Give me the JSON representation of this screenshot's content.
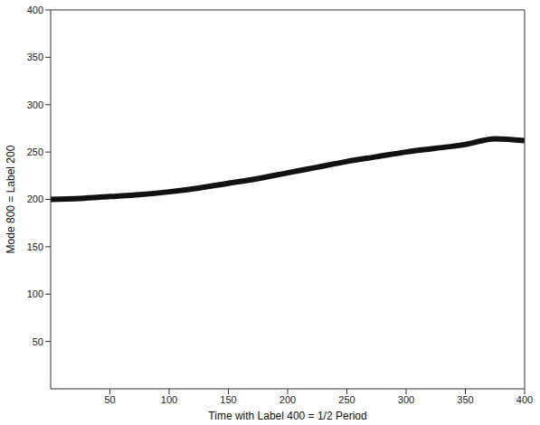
{
  "chart_data": {
    "type": "line",
    "xlabel": "Time with Label 400 = 1/2 Period",
    "ylabel": "Mode 800 = Label 200",
    "x": [
      0,
      25,
      50,
      75,
      100,
      125,
      150,
      175,
      200,
      225,
      250,
      275,
      300,
      325,
      350,
      375,
      400
    ],
    "values": [
      200,
      201,
      203,
      205,
      208,
      212,
      217,
      222,
      228,
      234,
      240,
      245,
      250,
      254,
      258,
      264,
      262
    ],
    "color": "#111111",
    "xlim": [
      0,
      400
    ],
    "ylim": [
      0,
      400
    ],
    "xticks": [
      50,
      100,
      150,
      200,
      250,
      300,
      350,
      400
    ],
    "yticks": [
      50,
      100,
      150,
      200,
      250,
      300,
      350,
      400
    ],
    "grid": false
  }
}
